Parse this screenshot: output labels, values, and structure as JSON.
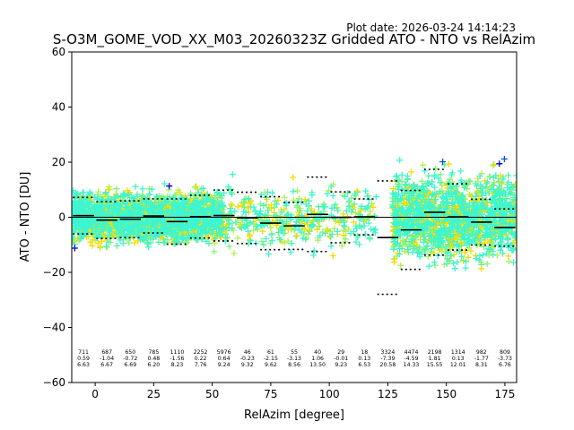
{
  "plot_date": "Plot date: 2026-03-24 14:14:23",
  "chart_data": {
    "type": "scatter",
    "title": "S-O3M_GOME_VOD_XX_M03_20260323Z Gridded ATO - NTO vs RelAzim",
    "xlabel": "RelAzim [degree]",
    "ylabel": "ATO - NTO [DU]",
    "xlim": [
      -10,
      180
    ],
    "ylim": [
      -60,
      60
    ],
    "xticks": [
      0,
      25,
      50,
      75,
      100,
      125,
      150,
      175
    ],
    "yticks": [
      -60,
      -40,
      -20,
      0,
      20,
      40,
      60
    ],
    "grid": false,
    "marker": "+",
    "zero_line": 0,
    "colors": {
      "cyan": "#3cf5d2",
      "green": "#82f57a",
      "yellow": "#f5dc00",
      "lime": "#b4f050",
      "blue": "#0050e6",
      "navy": "#0000c8",
      "mint": "#50f0aa"
    },
    "scatter_regions": [
      {
        "x0": -10,
        "x1": 55,
        "ymin": -30,
        "ymax": 30,
        "n": 2600,
        "spread": 7
      },
      {
        "x0": 55,
        "x1": 120,
        "ymin": -30,
        "ymax": 25,
        "n": 420,
        "spread": 9
      },
      {
        "x0": 127,
        "x1": 180,
        "ymin": -58,
        "ymax": 58,
        "n": 3400,
        "spread": 12
      }
    ],
    "bins": [
      {
        "x": -5,
        "count": "711",
        "mean": "0.59",
        "std": "6.63"
      },
      {
        "x": 5,
        "count": "687",
        "mean": "-1.04",
        "std": "6.67"
      },
      {
        "x": 15,
        "count": "650",
        "mean": "-0.72",
        "std": "6.69"
      },
      {
        "x": 25,
        "count": "785",
        "mean": "0.48",
        "std": "6.20"
      },
      {
        "x": 35,
        "count": "1110",
        "mean": "-1.56",
        "std": "8.23"
      },
      {
        "x": 45,
        "count": "2252",
        "mean": "0.22",
        "std": "7.76"
      },
      {
        "x": 55,
        "count": "5976",
        "mean": "0.64",
        "std": "9.24"
      },
      {
        "x": 65,
        "count": "46",
        "mean": "-0.23",
        "std": "9.32"
      },
      {
        "x": 75,
        "count": "61",
        "mean": "-2.15",
        "std": "9.62"
      },
      {
        "x": 85,
        "count": "55",
        "mean": "-3.13",
        "std": "8.56"
      },
      {
        "x": 95,
        "count": "40",
        "mean": "1.06",
        "std": "13.50"
      },
      {
        "x": 105,
        "count": "29",
        "mean": "-0.01",
        "std": "9.23"
      },
      {
        "x": 115,
        "count": "18",
        "mean": "0.13",
        "std": "6.53"
      },
      {
        "x": 125,
        "count": "3324",
        "mean": "-7.39",
        "std": "20.58"
      },
      {
        "x": 135,
        "count": "4474",
        "mean": "-4.59",
        "std": "14.33"
      },
      {
        "x": 145,
        "count": "2198",
        "mean": "1.81",
        "std": "15.55"
      },
      {
        "x": 155,
        "count": "1314",
        "mean": "0.13",
        "std": "12.01"
      },
      {
        "x": 165,
        "count": "982",
        "mean": "-1.77",
        "std": "8.31"
      },
      {
        "x": 175,
        "count": "809",
        "mean": "-3.73",
        "std": "6.76"
      }
    ]
  }
}
